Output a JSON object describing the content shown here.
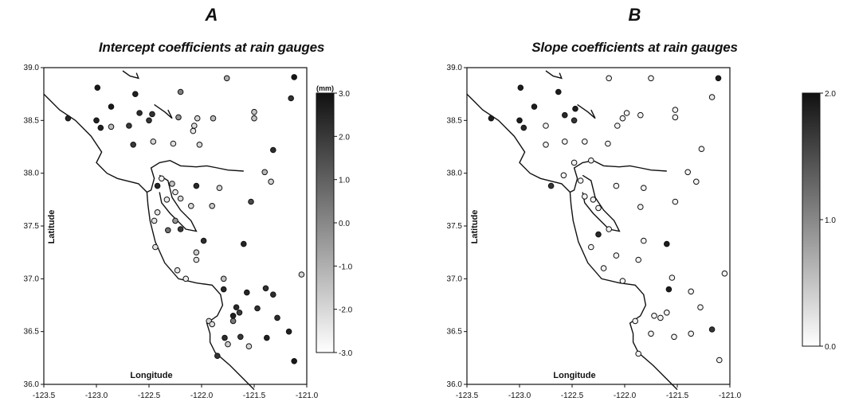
{
  "chart_data": [
    {
      "type": "scatter",
      "panel": "A",
      "title": "Intercept coefficients at rain gauges",
      "xlabel": "Longitude",
      "ylabel": "Latitude",
      "xlim": [
        -123.5,
        -121.0
      ],
      "ylim": [
        36.0,
        39.0
      ],
      "xticks": [
        "-123.5",
        "-123.0",
        "-122.5",
        "-122.0",
        "-121.5",
        "-121.0"
      ],
      "yticks": [
        "36.0",
        "36.5",
        "37.0",
        "37.5",
        "38.0",
        "38.5",
        "39.0"
      ],
      "colorbar": {
        "unit": "(mm)",
        "range": [
          -3.0,
          3.0
        ],
        "ticks": [
          "3.0",
          "2.0",
          "1.0",
          "0.0",
          "-1.0",
          "-2.0",
          "-3.0"
        ],
        "color_low": "#ffffff",
        "color_high": "#111111"
      },
      "points": [
        {
          "lon": -122.99,
          "lat": 38.81,
          "v": 2.8
        },
        {
          "lon": -122.86,
          "lat": 38.63,
          "v": 2.8
        },
        {
          "lon": -122.63,
          "lat": 38.75,
          "v": 2.6
        },
        {
          "lon": -122.2,
          "lat": 38.77,
          "v": 0.2
        },
        {
          "lon": -121.76,
          "lat": 38.9,
          "v": -1.0
        },
        {
          "lon": -121.12,
          "lat": 38.91,
          "v": 2.9
        },
        {
          "lon": -121.15,
          "lat": 38.71,
          "v": 2.2
        },
        {
          "lon": -123.27,
          "lat": 38.52,
          "v": 2.5
        },
        {
          "lon": -123.0,
          "lat": 38.5,
          "v": 2.6
        },
        {
          "lon": -122.96,
          "lat": 38.43,
          "v": 2.6
        },
        {
          "lon": -122.86,
          "lat": 38.44,
          "v": -1.3
        },
        {
          "lon": -122.59,
          "lat": 38.57,
          "v": 2.3
        },
        {
          "lon": -122.47,
          "lat": 38.56,
          "v": 2.2
        },
        {
          "lon": -122.5,
          "lat": 38.5,
          "v": 2.1
        },
        {
          "lon": -122.69,
          "lat": 38.45,
          "v": 2.0
        },
        {
          "lon": -122.22,
          "lat": 38.53,
          "v": -0.3
        },
        {
          "lon": -122.04,
          "lat": 38.52,
          "v": -2.0
        },
        {
          "lon": -122.07,
          "lat": 38.45,
          "v": -2.2
        },
        {
          "lon": -121.89,
          "lat": 38.52,
          "v": -1.3
        },
        {
          "lon": -121.5,
          "lat": 38.58,
          "v": -1.6
        },
        {
          "lon": -121.5,
          "lat": 38.52,
          "v": -1.5
        },
        {
          "lon": -122.08,
          "lat": 38.4,
          "v": -2.4
        },
        {
          "lon": -122.65,
          "lat": 38.27,
          "v": 2.0
        },
        {
          "lon": -122.46,
          "lat": 38.3,
          "v": -2.0
        },
        {
          "lon": -122.27,
          "lat": 38.28,
          "v": -2.2
        },
        {
          "lon": -122.02,
          "lat": 38.27,
          "v": -2.0
        },
        {
          "lon": -121.32,
          "lat": 38.22,
          "v": 2.3
        },
        {
          "lon": -121.4,
          "lat": 38.01,
          "v": -1.2
        },
        {
          "lon": -121.34,
          "lat": 37.92,
          "v": -1.9
        },
        {
          "lon": -122.38,
          "lat": 37.95,
          "v": -2.6
        },
        {
          "lon": -122.28,
          "lat": 37.9,
          "v": -1.5
        },
        {
          "lon": -122.42,
          "lat": 37.88,
          "v": 2.5
        },
        {
          "lon": -122.25,
          "lat": 37.82,
          "v": -2.5
        },
        {
          "lon": -122.2,
          "lat": 37.76,
          "v": -2.0
        },
        {
          "lon": -121.83,
          "lat": 37.86,
          "v": -2.0
        },
        {
          "lon": -122.05,
          "lat": 37.88,
          "v": 2.4
        },
        {
          "lon": -121.53,
          "lat": 37.73,
          "v": 1.6
        },
        {
          "lon": -121.9,
          "lat": 37.69,
          "v": -1.7
        },
        {
          "lon": -122.1,
          "lat": 37.69,
          "v": -2.1
        },
        {
          "lon": -122.33,
          "lat": 37.75,
          "v": -2.5
        },
        {
          "lon": -122.42,
          "lat": 37.63,
          "v": -2.4
        },
        {
          "lon": -122.45,
          "lat": 37.55,
          "v": -2.3
        },
        {
          "lon": -122.25,
          "lat": 37.55,
          "v": -0.3
        },
        {
          "lon": -122.2,
          "lat": 37.47,
          "v": 2.0
        },
        {
          "lon": -122.32,
          "lat": 37.46,
          "v": 0.5
        },
        {
          "lon": -122.44,
          "lat": 37.3,
          "v": -2.3
        },
        {
          "lon": -121.98,
          "lat": 37.36,
          "v": 2.3
        },
        {
          "lon": -121.6,
          "lat": 37.33,
          "v": 2.5
        },
        {
          "lon": -122.05,
          "lat": 37.25,
          "v": -1.8
        },
        {
          "lon": -122.05,
          "lat": 37.18,
          "v": -2.3
        },
        {
          "lon": -122.23,
          "lat": 37.08,
          "v": -2.4
        },
        {
          "lon": -122.15,
          "lat": 37.0,
          "v": -2.6
        },
        {
          "lon": -121.79,
          "lat": 37.0,
          "v": -1.4
        },
        {
          "lon": -121.79,
          "lat": 36.9,
          "v": 2.4
        },
        {
          "lon": -121.39,
          "lat": 36.91,
          "v": 2.2
        },
        {
          "lon": -121.05,
          "lat": 37.04,
          "v": -2.0
        },
        {
          "lon": -121.57,
          "lat": 36.87,
          "v": 2.5
        },
        {
          "lon": -121.32,
          "lat": 36.85,
          "v": 2.3
        },
        {
          "lon": -121.67,
          "lat": 36.73,
          "v": 2.4
        },
        {
          "lon": -121.64,
          "lat": 36.68,
          "v": 2.0
        },
        {
          "lon": -121.7,
          "lat": 36.65,
          "v": 2.6
        },
        {
          "lon": -121.7,
          "lat": 36.6,
          "v": 0.4
        },
        {
          "lon": -121.47,
          "lat": 36.72,
          "v": 2.2
        },
        {
          "lon": -121.93,
          "lat": 36.6,
          "v": -2.0
        },
        {
          "lon": -121.9,
          "lat": 36.57,
          "v": -2.2
        },
        {
          "lon": -121.28,
          "lat": 36.63,
          "v": 2.3
        },
        {
          "lon": -121.78,
          "lat": 36.44,
          "v": 2.3
        },
        {
          "lon": -121.63,
          "lat": 36.45,
          "v": 2.0
        },
        {
          "lon": -121.38,
          "lat": 36.44,
          "v": 2.6
        },
        {
          "lon": -121.17,
          "lat": 36.5,
          "v": 2.6
        },
        {
          "lon": -121.55,
          "lat": 36.36,
          "v": -2.0
        },
        {
          "lon": -121.12,
          "lat": 36.22,
          "v": 2.8
        },
        {
          "lon": -121.75,
          "lat": 36.38,
          "v": -1.8
        },
        {
          "lon": -121.85,
          "lat": 36.27,
          "v": 2.1
        }
      ]
    },
    {
      "type": "scatter",
      "panel": "B",
      "title": "Slope coefficients at rain gauges",
      "xlabel": "Longitude",
      "ylabel": "Latitude",
      "xlim": [
        -123.5,
        -121.0
      ],
      "ylim": [
        36.0,
        39.0
      ],
      "xticks": [
        "-123.5",
        "-123.0",
        "-122.5",
        "-122.0",
        "-121.5",
        "-121.0"
      ],
      "yticks": [
        "36.0",
        "36.5",
        "37.0",
        "37.5",
        "38.0",
        "38.5",
        "39.0"
      ],
      "colorbar": {
        "unit": "",
        "range": [
          0.0,
          2.0
        ],
        "ticks": [
          "2.0",
          "1.0",
          "0.0"
        ],
        "color_low": "#ffffff",
        "color_high": "#111111"
      },
      "points": [
        {
          "lon": -122.99,
          "lat": 38.81,
          "v": 1.9
        },
        {
          "lon": -122.63,
          "lat": 38.77,
          "v": 1.9
        },
        {
          "lon": -122.86,
          "lat": 38.63,
          "v": 1.9
        },
        {
          "lon": -122.47,
          "lat": 38.61,
          "v": 1.9
        },
        {
          "lon": -122.57,
          "lat": 38.55,
          "v": 1.8
        },
        {
          "lon": -123.27,
          "lat": 38.52,
          "v": 1.9
        },
        {
          "lon": -123.0,
          "lat": 38.5,
          "v": 1.9
        },
        {
          "lon": -122.96,
          "lat": 38.43,
          "v": 1.8
        },
        {
          "lon": -122.75,
          "lat": 38.45,
          "v": 0.1
        },
        {
          "lon": -122.48,
          "lat": 38.5,
          "v": 1.7
        },
        {
          "lon": -122.15,
          "lat": 38.9,
          "v": 0.1
        },
        {
          "lon": -121.75,
          "lat": 38.9,
          "v": 0.1
        },
        {
          "lon": -121.11,
          "lat": 38.9,
          "v": 1.9
        },
        {
          "lon": -121.17,
          "lat": 38.72,
          "v": 0.2
        },
        {
          "lon": -121.98,
          "lat": 38.57,
          "v": 0.1
        },
        {
          "lon": -122.02,
          "lat": 38.52,
          "v": 0.1
        },
        {
          "lon": -121.85,
          "lat": 38.55,
          "v": 0.1
        },
        {
          "lon": -121.52,
          "lat": 38.6,
          "v": 0.1
        },
        {
          "lon": -121.52,
          "lat": 38.53,
          "v": 0.1
        },
        {
          "lon": -122.07,
          "lat": 38.45,
          "v": 0.1
        },
        {
          "lon": -122.75,
          "lat": 38.27,
          "v": 0.1
        },
        {
          "lon": -122.57,
          "lat": 38.3,
          "v": 0.1
        },
        {
          "lon": -122.38,
          "lat": 38.3,
          "v": 0.1
        },
        {
          "lon": -122.16,
          "lat": 38.28,
          "v": 0.1
        },
        {
          "lon": -122.32,
          "lat": 38.12,
          "v": 0.1
        },
        {
          "lon": -122.48,
          "lat": 38.1,
          "v": 0.1
        },
        {
          "lon": -122.58,
          "lat": 37.98,
          "v": 0.1
        },
        {
          "lon": -121.27,
          "lat": 38.23,
          "v": 0.1
        },
        {
          "lon": -121.4,
          "lat": 38.01,
          "v": 0.1
        },
        {
          "lon": -121.32,
          "lat": 37.92,
          "v": 0.1
        },
        {
          "lon": -122.7,
          "lat": 37.88,
          "v": 1.7
        },
        {
          "lon": -122.42,
          "lat": 37.93,
          "v": 0.1
        },
        {
          "lon": -122.38,
          "lat": 37.78,
          "v": 0.1
        },
        {
          "lon": -122.3,
          "lat": 37.75,
          "v": 0.1
        },
        {
          "lon": -122.25,
          "lat": 37.67,
          "v": 0.1
        },
        {
          "lon": -122.08,
          "lat": 37.88,
          "v": 0.1
        },
        {
          "lon": -121.82,
          "lat": 37.86,
          "v": 0.1
        },
        {
          "lon": -121.52,
          "lat": 37.73,
          "v": 0.1
        },
        {
          "lon": -121.85,
          "lat": 37.68,
          "v": 0.1
        },
        {
          "lon": -122.15,
          "lat": 37.47,
          "v": 0.1
        },
        {
          "lon": -122.25,
          "lat": 37.42,
          "v": 1.8
        },
        {
          "lon": -121.82,
          "lat": 37.36,
          "v": 0.1
        },
        {
          "lon": -121.6,
          "lat": 37.33,
          "v": 1.9
        },
        {
          "lon": -122.32,
          "lat": 37.3,
          "v": 0.1
        },
        {
          "lon": -122.08,
          "lat": 37.22,
          "v": 0.1
        },
        {
          "lon": -121.87,
          "lat": 37.18,
          "v": 0.1
        },
        {
          "lon": -122.2,
          "lat": 37.1,
          "v": 0.1
        },
        {
          "lon": -122.02,
          "lat": 36.98,
          "v": 0.1
        },
        {
          "lon": -121.55,
          "lat": 37.01,
          "v": 0.1
        },
        {
          "lon": -121.05,
          "lat": 37.05,
          "v": 0.1
        },
        {
          "lon": -121.58,
          "lat": 36.9,
          "v": 1.9
        },
        {
          "lon": -121.37,
          "lat": 36.88,
          "v": 0.1
        },
        {
          "lon": -121.28,
          "lat": 36.73,
          "v": 0.1
        },
        {
          "lon": -121.6,
          "lat": 36.68,
          "v": 0.1
        },
        {
          "lon": -121.66,
          "lat": 36.63,
          "v": 0.1
        },
        {
          "lon": -121.72,
          "lat": 36.65,
          "v": 0.1
        },
        {
          "lon": -121.9,
          "lat": 36.6,
          "v": 0.1
        },
        {
          "lon": -121.75,
          "lat": 36.48,
          "v": 0.1
        },
        {
          "lon": -121.53,
          "lat": 36.45,
          "v": 0.1
        },
        {
          "lon": -121.37,
          "lat": 36.48,
          "v": 0.1
        },
        {
          "lon": -121.17,
          "lat": 36.52,
          "v": 1.7
        },
        {
          "lon": -121.87,
          "lat": 36.29,
          "v": 0.1
        },
        {
          "lon": -121.1,
          "lat": 36.23,
          "v": 0.1
        }
      ]
    }
  ]
}
